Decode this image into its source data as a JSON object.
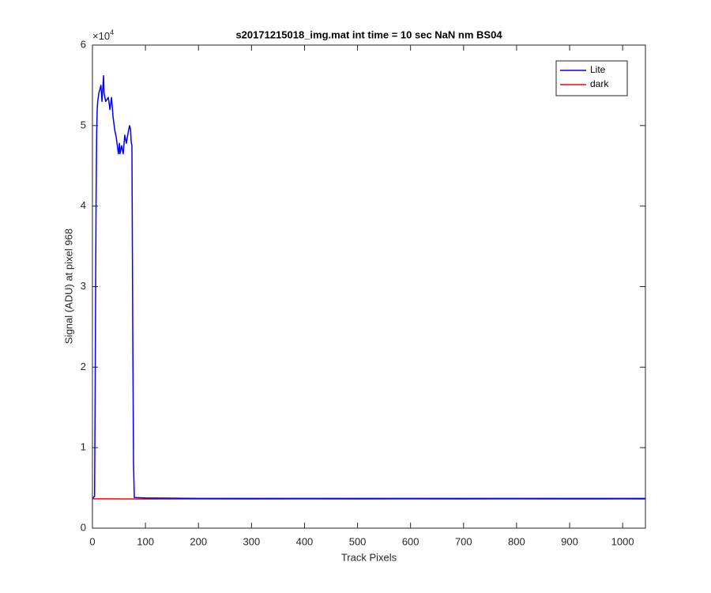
{
  "chart_data": {
    "type": "line",
    "title": "s20171215018_img.mat int time = 10 sec  NaN nm BS04",
    "x_label": "Track Pixels",
    "y_label": "Signal (ADU) at pixel 968",
    "y_multiplier": {
      "text": "×10",
      "exponent": "4"
    },
    "xlim": [
      0,
      1043
    ],
    "ylim": [
      0,
      60000
    ],
    "xticks": [
      0,
      100,
      200,
      300,
      400,
      500,
      600,
      700,
      800,
      900,
      1000
    ],
    "yticks": [
      {
        "value": 0,
        "label": "0"
      },
      {
        "value": 10000,
        "label": "1"
      },
      {
        "value": 20000,
        "label": "2"
      },
      {
        "value": 30000,
        "label": "3"
      },
      {
        "value": 40000,
        "label": "4"
      },
      {
        "value": 50000,
        "label": "5"
      },
      {
        "value": 60000,
        "label": "6"
      }
    ],
    "grid": false,
    "legend_position": "upper-right",
    "series": [
      {
        "name": "Lite",
        "color": "#0000ff",
        "x": [
          0,
          3,
          4,
          5,
          6,
          7,
          8,
          9,
          10,
          12,
          14,
          16,
          18,
          21,
          22,
          25,
          30,
          33,
          36,
          39,
          42,
          45,
          48,
          49,
          51,
          52,
          55,
          58,
          61,
          64,
          67,
          70,
          72,
          73,
          74.5,
          76,
          77.5,
          79,
          100,
          200,
          300,
          400,
          500,
          600,
          700,
          800,
          900,
          1000,
          1043
        ],
        "values": [
          3700,
          3900,
          3900,
          15000,
          30000,
          42000,
          49000,
          52000,
          53000,
          54000,
          54500,
          55000,
          53000,
          56200,
          54000,
          53000,
          53500,
          52000,
          53500,
          51000,
          49500,
          48500,
          47000,
          46500,
          47800,
          46500,
          47500,
          46500,
          48800,
          47800,
          49000,
          50000,
          49500,
          48000,
          47500,
          25000,
          8000,
          3800,
          3750,
          3700,
          3700,
          3700,
          3700,
          3700,
          3700,
          3700,
          3700,
          3700,
          3700
        ]
      },
      {
        "name": "dark",
        "color": "#ff0000",
        "x": [
          0,
          100,
          200,
          300,
          400,
          500,
          600,
          700,
          800,
          900,
          1000,
          1043
        ],
        "values": [
          3650,
          3620,
          3630,
          3620,
          3630,
          3620,
          3630,
          3620,
          3630,
          3620,
          3630,
          3620
        ]
      }
    ]
  }
}
